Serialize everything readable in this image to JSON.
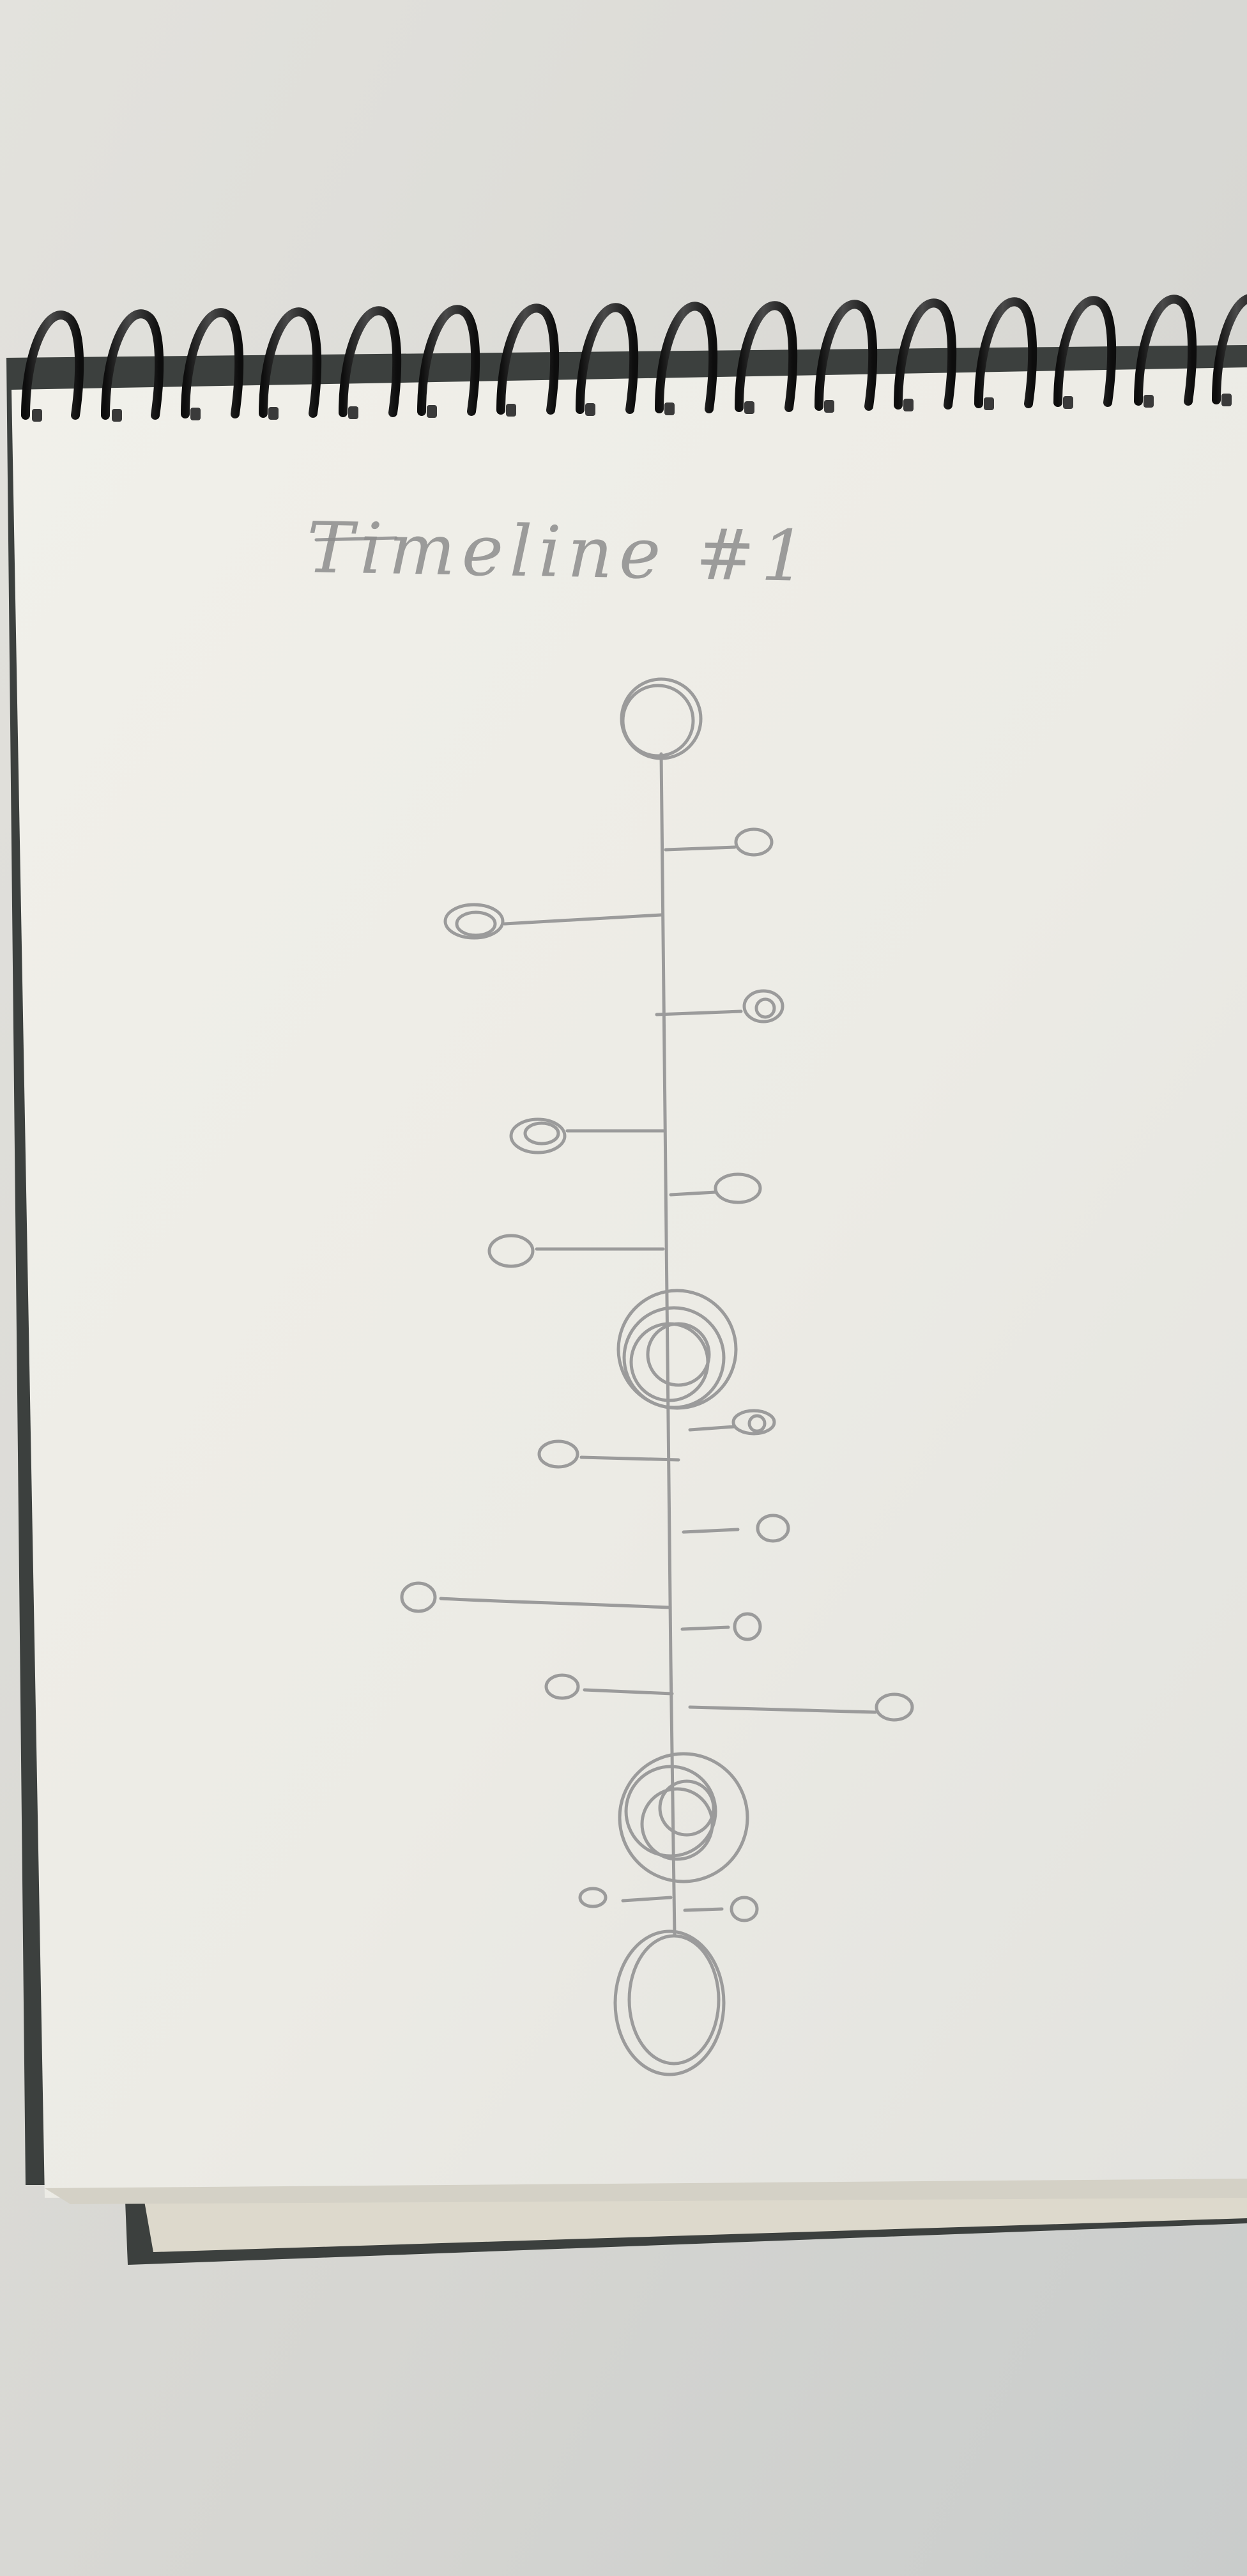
{
  "sketch": {
    "title": "Timeline #1"
  },
  "colors": {
    "desk": "#dcdcd8",
    "paper": "#efeee8",
    "binding": "#1c1c1c",
    "back_cover": "#3c403e",
    "pencil": "#9b9b9b"
  }
}
